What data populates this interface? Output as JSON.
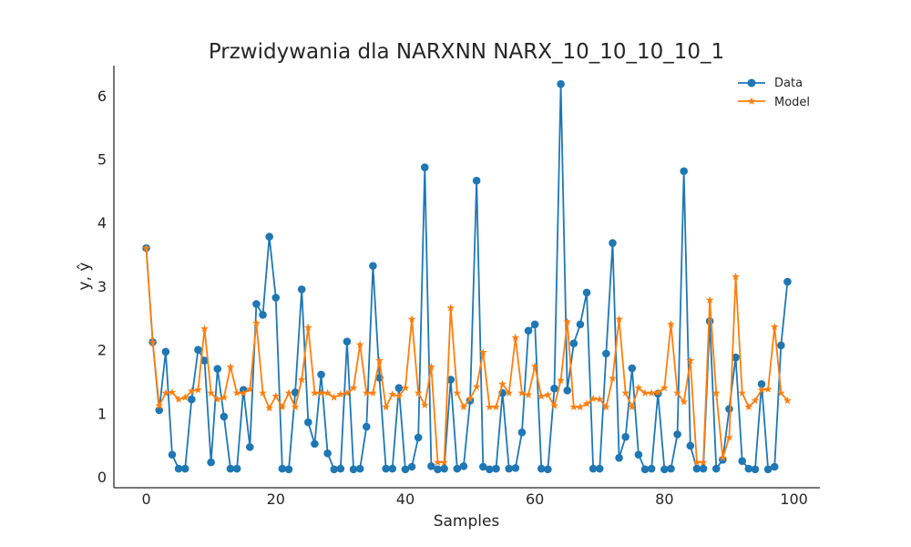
{
  "chart_data": {
    "type": "line",
    "title": "Przwidywania dla NARXNN NARX_10_10_10_10_1",
    "xlabel": "Samples",
    "ylabel": "y, ŷ",
    "xlim": [
      -5,
      104
    ],
    "ylim": [
      -0.17,
      6.47
    ],
    "xticks": [
      "0",
      "20",
      "40",
      "60",
      "80",
      "100"
    ],
    "yticks": [
      "0",
      "1",
      "2",
      "3",
      "4",
      "5",
      "6"
    ],
    "grid": false,
    "legend_position": "top-right",
    "series": [
      {
        "name": "Data",
        "color": "#1f77b4",
        "marker": "circle",
        "x": [
          0,
          1,
          2,
          3,
          4,
          5,
          6,
          7,
          8,
          9,
          10,
          11,
          12,
          13,
          14,
          15,
          16,
          17,
          18,
          19,
          20,
          21,
          22,
          23,
          24,
          25,
          26,
          27,
          28,
          29,
          30,
          31,
          32,
          33,
          34,
          35,
          36,
          37,
          38,
          39,
          40,
          41,
          42,
          43,
          44,
          45,
          46,
          47,
          48,
          49,
          50,
          51,
          52,
          53,
          54,
          55,
          56,
          57,
          58,
          59,
          60,
          61,
          62,
          63,
          64,
          65,
          66,
          67,
          68,
          69,
          70,
          71,
          72,
          73,
          74,
          75,
          76,
          77,
          78,
          79,
          80,
          81,
          82,
          83,
          84,
          85,
          86,
          87,
          88,
          89,
          90,
          91,
          92,
          93,
          94,
          95,
          96,
          97,
          98,
          99
        ],
        "values": [
          3.6,
          2.12,
          1.05,
          1.97,
          0.35,
          0.13,
          0.13,
          1.22,
          2.0,
          1.83,
          0.23,
          1.7,
          0.95,
          0.13,
          0.13,
          1.37,
          0.47,
          2.72,
          2.55,
          3.78,
          2.82,
          0.13,
          0.12,
          1.33,
          2.95,
          0.86,
          0.52,
          1.61,
          0.37,
          0.12,
          0.13,
          2.13,
          0.12,
          0.13,
          0.79,
          3.32,
          1.56,
          0.13,
          0.13,
          1.4,
          0.12,
          0.16,
          0.62,
          4.87,
          0.17,
          0.12,
          0.13,
          1.53,
          0.13,
          0.17,
          1.2,
          4.66,
          0.16,
          0.12,
          0.13,
          1.32,
          0.13,
          0.14,
          0.7,
          2.3,
          2.4,
          0.13,
          0.12,
          1.39,
          6.18,
          1.36,
          2.1,
          2.4,
          2.9,
          0.13,
          0.13,
          1.94,
          3.68,
          0.3,
          0.63,
          1.71,
          0.35,
          0.12,
          0.13,
          1.31,
          0.12,
          0.13,
          0.67,
          4.81,
          0.49,
          0.13,
          0.13,
          2.45,
          0.13,
          0.27,
          1.07,
          1.88,
          0.25,
          0.13,
          0.12,
          1.46,
          0.12,
          0.16,
          2.07,
          3.07
        ]
      },
      {
        "name": "Model",
        "color": "#ff7f0e",
        "marker": "star",
        "x": [
          0,
          1,
          2,
          3,
          4,
          5,
          6,
          7,
          8,
          9,
          10,
          11,
          12,
          13,
          14,
          15,
          16,
          17,
          18,
          19,
          20,
          21,
          22,
          23,
          24,
          25,
          26,
          27,
          28,
          29,
          30,
          31,
          32,
          33,
          34,
          35,
          36,
          37,
          38,
          39,
          40,
          41,
          42,
          43,
          44,
          45,
          46,
          47,
          48,
          49,
          50,
          51,
          52,
          53,
          54,
          55,
          56,
          57,
          58,
          59,
          60,
          61,
          62,
          63,
          64,
          65,
          66,
          67,
          68,
          69,
          70,
          71,
          72,
          73,
          74,
          75,
          76,
          77,
          78,
          79,
          80,
          81,
          82,
          83,
          84,
          85,
          86,
          87,
          88,
          89,
          90,
          91,
          92,
          93,
          94,
          95,
          96,
          97,
          98,
          99
        ],
        "values": [
          3.6,
          2.12,
          1.12,
          1.32,
          1.33,
          1.22,
          1.25,
          1.35,
          1.37,
          2.33,
          1.32,
          1.22,
          1.25,
          1.73,
          1.32,
          1.32,
          1.38,
          2.42,
          1.32,
          1.08,
          1.27,
          1.1,
          1.32,
          1.1,
          1.53,
          2.35,
          1.32,
          1.32,
          1.32,
          1.25,
          1.3,
          1.32,
          1.4,
          2.08,
          1.32,
          1.32,
          1.83,
          1.1,
          1.3,
          1.27,
          1.4,
          2.48,
          1.32,
          1.13,
          1.73,
          0.23,
          0.23,
          2.66,
          1.32,
          1.1,
          1.23,
          1.42,
          1.96,
          1.1,
          1.1,
          1.46,
          1.32,
          2.19,
          1.32,
          1.29,
          1.74,
          1.27,
          1.29,
          1.12,
          1.52,
          2.44,
          1.1,
          1.1,
          1.15,
          1.23,
          1.22,
          1.1,
          1.55,
          2.48,
          1.32,
          1.1,
          1.4,
          1.32,
          1.32,
          1.33,
          1.4,
          2.4,
          1.32,
          1.18,
          1.83,
          0.23,
          0.23,
          2.78,
          1.32,
          0.3,
          0.62,
          3.15,
          1.32,
          1.1,
          1.2,
          1.37,
          1.38,
          2.36,
          1.32,
          1.2
        ]
      }
    ]
  }
}
